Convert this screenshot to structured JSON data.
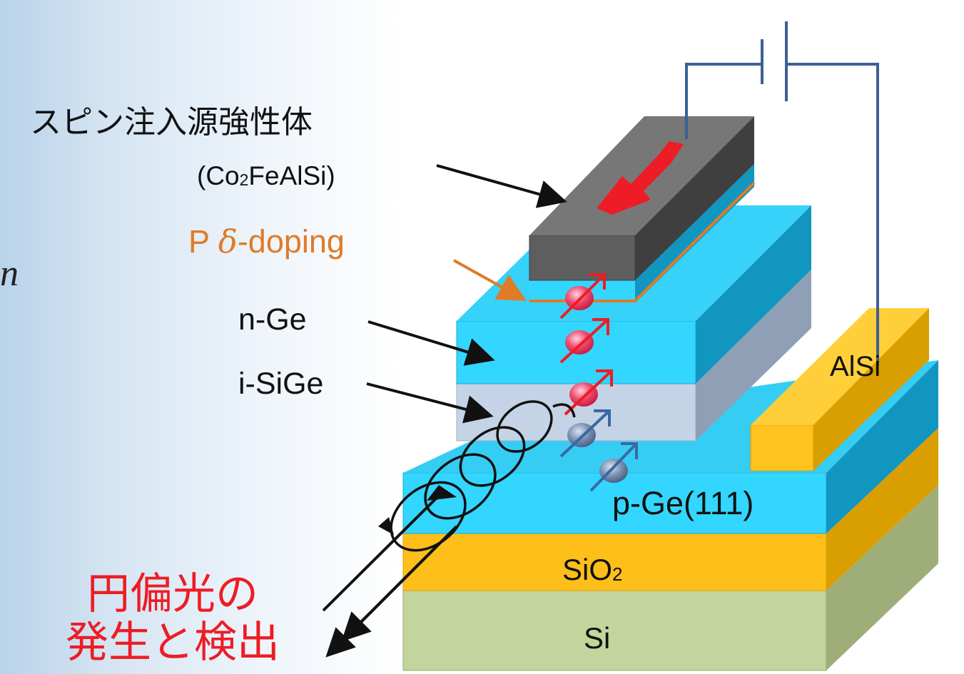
{
  "labels": {
    "source_title": "スピン注入源強性体",
    "source_formula_a": "(Co",
    "source_formula_sub": "2",
    "source_formula_b": "FeAlSi)",
    "delta_prefix": "P ",
    "delta_symbol": "δ",
    "delta_suffix": "-doping",
    "n_ge": "n-Ge",
    "i_sige": "i-SiGe",
    "p_ge": "p-Ge(111)",
    "sio2_a": "SiO",
    "sio2_sub": "2",
    "si": "Si",
    "alsi": "AlSi",
    "light_line1": "円偏光の",
    "light_line2": "発生と検出",
    "edge_fragment": "n"
  },
  "colors": {
    "ge_cyan": "#33d6ff",
    "sige_gray": "#c4d4e6",
    "gold": "#ffbf1a",
    "si_green": "#c3d59c",
    "ferromagnet": "#5e5e5e",
    "doping_orange": "#e07b28",
    "spin_up_red": "#ee1c25",
    "spin_down_blue": "#3a68a4",
    "circuit_blue": "#3d5f95",
    "light_label_red": "#ee1c25"
  }
}
